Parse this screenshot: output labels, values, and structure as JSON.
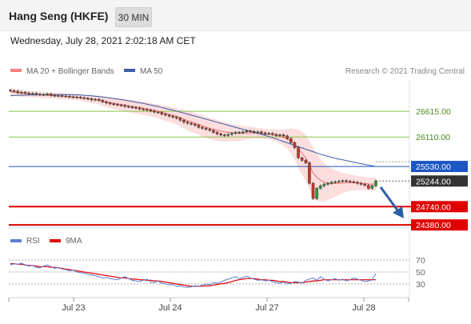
{
  "header": {
    "title": "Hang Seng (HKFE)",
    "timeframe": "30 MIN"
  },
  "timestamp": "Wednesday, July 28, 2021 2:02:18 AM CET",
  "legend": {
    "ma20_label": "MA 20 + Bollinger Bands",
    "ma50_label": "MA 50",
    "copyright": "Research © 2021 Trading Central"
  },
  "rsi_legend": {
    "rsi_label": "RSI",
    "ma_label": "9MA"
  },
  "colors": {
    "ma20": "#f08080",
    "ma50": "#3a5fa8",
    "bands": "#fbd3d3",
    "support": "#e00000",
    "resistance": "#8bc34a",
    "pivot": "#1a56c4",
    "last": "#333333",
    "rsi": "#5b7fd6",
    "rsi_ma": "#e00000",
    "arrow": "#2e5da8"
  },
  "chart_data": {
    "type": "candlestick",
    "x_tick_labels": [
      "Jul 23",
      "Jul 24",
      "Jul 27",
      "Jul 28"
    ],
    "ylim": [
      24320,
      27230
    ],
    "levels": [
      {
        "value": 26615,
        "label": "26615.00",
        "kind": "resistance"
      },
      {
        "value": 26110,
        "label": "26110.00",
        "kind": "resistance"
      },
      {
        "value": 25530,
        "label": "25530.00",
        "kind": "pivot"
      },
      {
        "value": 25244,
        "label": "25244.00",
        "kind": "last"
      },
      {
        "value": 24740,
        "label": "24740.00",
        "kind": "support"
      },
      {
        "value": 24380,
        "label": "24380.00",
        "kind": "support"
      }
    ],
    "close": [
      27020,
      27010,
      26980,
      26990,
      26975,
      26960,
      26965,
      26950,
      26940,
      26945,
      26955,
      26930,
      26920,
      26925,
      26915,
      26910,
      26900,
      26895,
      26890,
      26880,
      26870,
      26860,
      26840,
      26850,
      26830,
      26800,
      26780,
      26760,
      26750,
      26740,
      26730,
      26710,
      26700,
      26690,
      26680,
      26660,
      26650,
      26640,
      26620,
      26600,
      26590,
      26560,
      26540,
      26520,
      26500,
      26480,
      26440,
      26400,
      26380,
      26360,
      26340,
      26300,
      26280,
      26260,
      26240,
      26200,
      26170,
      26150,
      26140,
      26160,
      26180,
      26200,
      26190,
      26210,
      26230,
      26220,
      26200,
      26210,
      26190,
      26170,
      26180,
      26160,
      26140,
      26150,
      26130,
      26080,
      26000,
      25900,
      25700,
      25650,
      25600,
      25200,
      24900,
      25100,
      25150,
      25180,
      25200,
      25220,
      25230,
      25240,
      25250,
      25240,
      25230,
      25220,
      25200,
      25180,
      25160,
      25100,
      25150,
      25244
    ],
    "ma20": [
      27000,
      26990,
      26980,
      26970,
      26960,
      26950,
      26950,
      26945,
      26940,
      26935,
      26930,
      26925,
      26920,
      26915,
      26910,
      26905,
      26900,
      26895,
      26890,
      26885,
      26875,
      26865,
      26855,
      26845,
      26835,
      26815,
      26800,
      26785,
      26770,
      26760,
      26745,
      26735,
      26720,
      26710,
      26700,
      26690,
      26675,
      26660,
      26645,
      26630,
      26615,
      26595,
      26575,
      26555,
      26535,
      26515,
      26490,
      26460,
      26430,
      26405,
      26380,
      26355,
      26330,
      26305,
      26280,
      26260,
      26240,
      26225,
      26210,
      26200,
      26195,
      26190,
      26185,
      26185,
      26190,
      26190,
      26190,
      26185,
      26180,
      26170,
      26165,
      26155,
      26140,
      26125,
      26100,
      26070,
      26030,
      25970,
      25880,
      25790,
      25700,
      25560,
      25400,
      25320,
      25260,
      25220,
      25200,
      25195,
      25195,
      25200,
      25205,
      25210,
      25210,
      25210,
      25205,
      25200,
      25195,
      25185,
      25180,
      25190
    ],
    "bb_width": [
      70,
      70,
      70,
      70,
      60,
      60,
      60,
      60,
      60,
      60,
      60,
      60,
      60,
      60,
      60,
      60,
      60,
      60,
      60,
      60,
      70,
      70,
      80,
      80,
      90,
      100,
      100,
      110,
      110,
      120,
      120,
      120,
      130,
      130,
      130,
      130,
      130,
      130,
      130,
      130,
      140,
      140,
      150,
      150,
      150,
      160,
      170,
      180,
      190,
      200,
      200,
      200,
      210,
      210,
      210,
      210,
      210,
      200,
      190,
      180,
      170,
      160,
      150,
      140,
      130,
      120,
      110,
      100,
      100,
      100,
      100,
      110,
      120,
      130,
      160,
      190,
      250,
      300,
      380,
      420,
      450,
      480,
      500,
      460,
      420,
      380,
      330,
      300,
      260,
      230,
      200,
      180,
      160,
      150,
      140,
      130,
      130,
      130,
      130,
      130
    ],
    "ma50": [
      26920,
      26925,
      26930,
      26930,
      26932,
      26935,
      26935,
      26938,
      26940,
      26940,
      26942,
      26944,
      26945,
      26946,
      26946,
      26945,
      26944,
      26942,
      26940,
      26935,
      26930,
      26925,
      26920,
      26912,
      26905,
      26895,
      26885,
      26875,
      26865,
      26855,
      26845,
      26833,
      26820,
      26808,
      26795,
      26782,
      26770,
      26755,
      26740,
      26725,
      26710,
      26690,
      26672,
      26655,
      26638,
      26620,
      26600,
      26580,
      26560,
      26540,
      26520,
      26500,
      26480,
      26460,
      26440,
      26420,
      26400,
      26380,
      26360,
      26340,
      26320,
      26300,
      26280,
      26260,
      26240,
      26220,
      26200,
      26180,
      26160,
      26140,
      26120,
      26095,
      26070,
      26045,
      26020,
      25995,
      25970,
      25945,
      25920,
      25895,
      25870,
      25845,
      25820,
      25795,
      25770,
      25750,
      25730,
      25710,
      25690,
      25675,
      25660,
      25645,
      25630,
      25615,
      25600,
      25585,
      25570,
      25555,
      25542,
      25530
    ],
    "rsi": {
      "ylim": [
        15,
        85
      ],
      "ticks": [
        70,
        50,
        30
      ],
      "values": [
        62,
        64,
        63,
        65,
        62,
        60,
        61,
        58,
        57,
        60,
        62,
        59,
        56,
        58,
        55,
        54,
        52,
        53,
        50,
        49,
        48,
        46,
        45,
        44,
        42,
        40,
        41,
        39,
        38,
        37,
        40,
        42,
        39,
        36,
        35,
        34,
        36,
        38,
        33,
        32,
        35,
        31,
        30,
        28,
        29,
        26,
        27,
        25,
        24,
        25,
        27,
        26,
        28,
        30,
        29,
        32,
        31,
        33,
        36,
        38,
        40,
        42,
        39,
        41,
        43,
        40,
        38,
        36,
        37,
        35,
        36,
        34,
        32,
        31,
        33,
        30,
        31,
        34,
        33,
        31,
        36,
        38,
        40,
        36,
        42,
        38,
        35,
        37,
        39,
        36,
        38,
        35,
        37,
        40,
        38,
        36,
        34,
        35,
        37,
        47
      ],
      "ma_values": [
        64,
        64,
        63,
        63,
        62,
        61,
        61,
        60,
        59,
        59,
        59,
        58,
        58,
        57,
        56,
        55,
        54,
        53,
        52,
        51,
        50,
        49,
        48,
        47,
        46,
        45,
        44,
        43,
        42,
        41,
        40,
        40,
        39,
        38,
        38,
        37,
        37,
        36,
        36,
        35,
        35,
        34,
        33,
        32,
        31,
        30,
        29,
        28,
        27,
        26,
        26,
        26,
        26,
        27,
        27,
        28,
        29,
        30,
        31,
        32,
        34,
        36,
        37,
        38,
        39,
        39,
        39,
        38,
        37,
        37,
        36,
        36,
        35,
        34,
        34,
        33,
        32,
        32,
        32,
        32,
        33,
        34,
        35,
        35,
        36,
        37,
        37,
        37,
        37,
        37,
        37,
        37,
        37,
        37,
        37,
        37,
        37,
        37,
        37,
        37
      ]
    }
  }
}
